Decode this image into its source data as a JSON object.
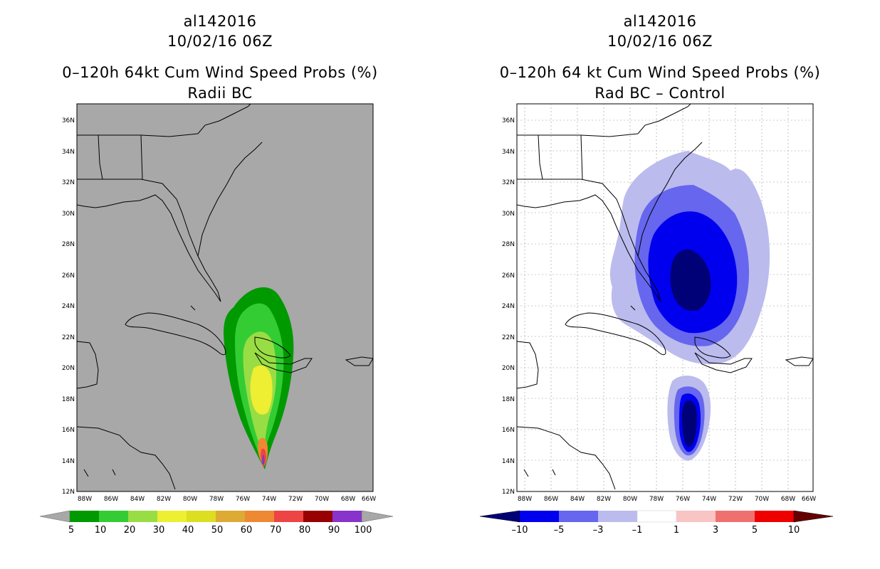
{
  "left_panel": {
    "title_line1": "al142016",
    "title_line2": "10/02/16 06Z",
    "title_line3": "0–120h 64kt Cum Wind Speed Probs (%)",
    "title_line4": "Radii BC",
    "background_color": "#a8a8a8",
    "colorbar": {
      "labels": [
        "5",
        "10",
        "20",
        "30",
        "40",
        "50",
        "60",
        "70",
        "80",
        "90",
        "100"
      ],
      "colors": [
        "#009900",
        "#33cc33",
        "#99dd44",
        "#eeee33",
        "#dddd22",
        "#ddaa33",
        "#ee8833",
        "#ee4444",
        "#990000",
        "#8833cc"
      ],
      "low_color": "#a8a8a8",
      "high_color": "#a8a8a8"
    }
  },
  "right_panel": {
    "title_line1": "al142016",
    "title_line2": "10/02/16 06Z",
    "title_line3": "0–120h 64 kt Cum Wind Speed Probs (%)",
    "title_line4": "Rad BC – Control",
    "background_color": "#ffffff",
    "colorbar": {
      "labels": [
        "–10",
        "–5",
        "–3",
        "–1",
        "1",
        "3",
        "5",
        "10"
      ],
      "colors": [
        "#0000ee",
        "#6666ee",
        "#bbbbee",
        "#ffffff",
        "#f8c4c4",
        "#f07070",
        "#ee0000"
      ],
      "low_color": "#000077",
      "high_color": "#660000"
    }
  },
  "axes": {
    "lat_labels": [
      "12N",
      "14N",
      "16N",
      "18N",
      "20N",
      "22N",
      "24N",
      "26N",
      "28N",
      "30N",
      "32N",
      "34N",
      "36N"
    ],
    "lon_labels": [
      "88W",
      "86W",
      "84W",
      "82W",
      "80W",
      "78W",
      "76W",
      "74W",
      "72W",
      "70W",
      "68W",
      "66W"
    ],
    "lat_range": [
      12,
      37
    ],
    "lon_range": [
      -89,
      -66.5
    ]
  }
}
